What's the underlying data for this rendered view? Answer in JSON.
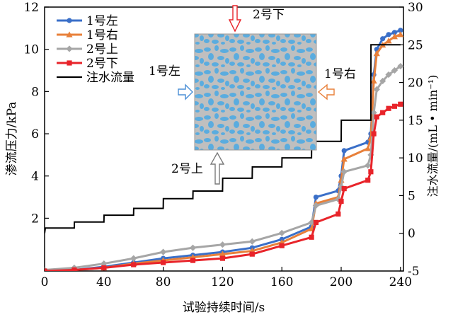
{
  "chart_data": {
    "type": "line",
    "xlabel": "试验持续时间/s",
    "ylabel_left": "渗流压力/kPa",
    "ylabel_right": "注水流量/(mL • min⁻¹)",
    "xlim": [
      0,
      242
    ],
    "ylim_left": [
      -0.5,
      12
    ],
    "ylim_right": [
      -5,
      30
    ],
    "xticks": [
      "0",
      "40",
      "80",
      "120",
      "160",
      "200",
      "240"
    ],
    "yticks_left": [
      "2",
      "4",
      "6",
      "8",
      "10",
      "12"
    ],
    "yticks_right": [
      "-5",
      "0",
      "5",
      "10",
      "15",
      "20",
      "25",
      "30"
    ],
    "legend": [
      "1号左",
      "1号右",
      "2号上",
      "2号下",
      "注水流量"
    ],
    "legend_placement": "top-left",
    "series": [
      {
        "name": "1号左",
        "axis": "left",
        "color": "#3a6fc8",
        "marker": "circle",
        "x": [
          0,
          20,
          40,
          60,
          80,
          100,
          120,
          140,
          160,
          180,
          183,
          198,
          200,
          202,
          218,
          220,
          222,
          224,
          228,
          232,
          236,
          240
        ],
        "y": [
          -0.5,
          -0.45,
          -0.3,
          -0.1,
          0.1,
          0.25,
          0.4,
          0.6,
          1.0,
          1.6,
          3.0,
          3.3,
          4.0,
          5.2,
          5.6,
          6.0,
          8.8,
          10.0,
          10.5,
          10.7,
          10.8,
          10.9
        ]
      },
      {
        "name": "1号右",
        "axis": "left",
        "color": "#e8803a",
        "marker": "triangle",
        "x": [
          0,
          20,
          40,
          60,
          80,
          100,
          120,
          140,
          160,
          180,
          183,
          198,
          200,
          202,
          218,
          220,
          222,
          224,
          228,
          232,
          236,
          240
        ],
        "y": [
          -0.5,
          -0.45,
          -0.35,
          -0.15,
          0.0,
          0.15,
          0.3,
          0.45,
          0.85,
          1.5,
          2.7,
          3.0,
          3.8,
          4.8,
          5.3,
          5.8,
          8.5,
          9.8,
          10.2,
          10.4,
          10.6,
          10.7
        ]
      },
      {
        "name": "2号上",
        "axis": "left",
        "color": "#a6a6a6",
        "marker": "diamond",
        "x": [
          0,
          20,
          40,
          60,
          80,
          100,
          120,
          140,
          160,
          180,
          183,
          198,
          200,
          202,
          218,
          220,
          222,
          224,
          228,
          232,
          236,
          240
        ],
        "y": [
          -0.45,
          -0.35,
          -0.15,
          0.1,
          0.4,
          0.6,
          0.75,
          0.9,
          1.3,
          1.8,
          2.6,
          2.9,
          3.5,
          4.2,
          4.5,
          5.0,
          7.0,
          8.1,
          8.5,
          8.8,
          9.0,
          9.2
        ]
      },
      {
        "name": "2号下",
        "axis": "left",
        "color": "#e8242a",
        "marker": "square",
        "x": [
          0,
          20,
          40,
          60,
          80,
          100,
          120,
          140,
          160,
          180,
          183,
          198,
          200,
          202,
          218,
          220,
          222,
          224,
          228,
          232,
          236,
          240
        ],
        "y": [
          -0.5,
          -0.45,
          -0.35,
          -0.2,
          -0.1,
          0.0,
          0.1,
          0.3,
          0.7,
          1.1,
          1.8,
          2.2,
          2.8,
          3.4,
          3.8,
          4.2,
          6.0,
          6.8,
          7.0,
          7.2,
          7.3,
          7.4
        ]
      },
      {
        "name": "注水流量",
        "axis": "right",
        "color": "#000000",
        "marker": "none",
        "x": [
          0,
          0.5,
          20,
          20.1,
          40,
          40.1,
          60,
          60.1,
          80,
          80.1,
          100,
          100.1,
          120,
          120.1,
          140,
          140.1,
          160,
          160.1,
          180,
          180.1,
          200,
          200.1,
          220,
          220.1,
          240
        ],
        "y": [
          0,
          0.7,
          0.7,
          1.5,
          1.5,
          2.4,
          2.4,
          3.3,
          3.3,
          4.6,
          4.6,
          5.6,
          5.6,
          7.3,
          7.3,
          8.8,
          8.8,
          10.0,
          10.0,
          12.2,
          12.2,
          15.0,
          15.0,
          25.0,
          25.0
        ]
      }
    ],
    "annotations": {
      "top": "2号下",
      "bottom": "2号上",
      "left": "1号左",
      "right": "1号右"
    },
    "inset_image": "speckled-sample-photo"
  }
}
